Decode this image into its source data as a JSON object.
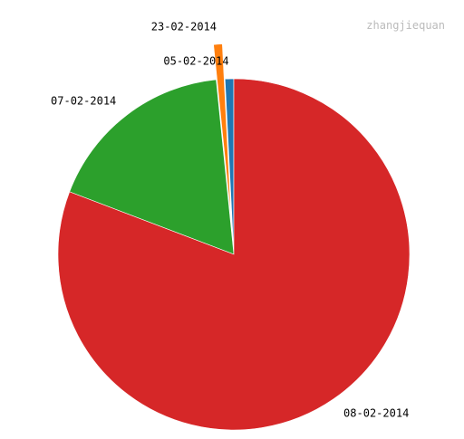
{
  "watermark": "zhangjiequan",
  "chart_data": {
    "type": "pie",
    "title": "",
    "start_angle_deg": 90,
    "direction": "counterclockwise",
    "legend": "none",
    "slices": [
      {
        "label": "05-02-2014",
        "value": 0.8,
        "color": "#1f77b4",
        "explode": 0
      },
      {
        "label": "23-02-2014",
        "value": 0.8,
        "color": "#ff7f0e",
        "explode": 0.2
      },
      {
        "label": "07-02-2014",
        "value": 17.6,
        "color": "#2ca02c",
        "explode": 0
      },
      {
        "label": "08-02-2014",
        "value": 80.8,
        "color": "#d62728",
        "explode": 0
      }
    ]
  }
}
